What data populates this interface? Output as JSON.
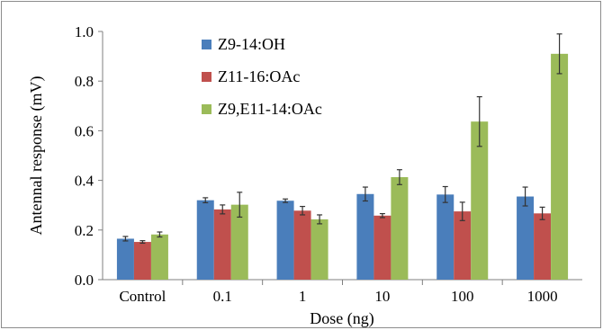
{
  "chart_data": {
    "type": "bar",
    "title": "",
    "xlabel": "Dose (ng)",
    "ylabel": "Antennal response (mV)",
    "ylim": [
      0,
      1.0
    ],
    "yticks": [
      "0.0",
      "0.2",
      "0.4",
      "0.6",
      "0.8",
      "1.0"
    ],
    "categories": [
      "Control",
      "0.1",
      "1",
      "10",
      "100",
      "1000"
    ],
    "legend_position": "top-left",
    "grid": false,
    "error_bars": true,
    "series": [
      {
        "name": "Z9-14:OH",
        "color": "#4a7ebb",
        "values": [
          0.165,
          0.32,
          0.318,
          0.345,
          0.343,
          0.335
        ],
        "errors": [
          0.009,
          0.01,
          0.007,
          0.028,
          0.032,
          0.038
        ]
      },
      {
        "name": "Z11-16:OAc",
        "color": "#c0504d",
        "values": [
          0.152,
          0.283,
          0.278,
          0.258,
          0.275,
          0.267
        ],
        "errors": [
          0.005,
          0.018,
          0.017,
          0.008,
          0.037,
          0.025
        ]
      },
      {
        "name": "Z9,E11-14:OAc",
        "color": "#9bbb59",
        "values": [
          0.182,
          0.302,
          0.243,
          0.413,
          0.637,
          0.91
        ],
        "errors": [
          0.01,
          0.05,
          0.018,
          0.03,
          0.1,
          0.08
        ]
      }
    ]
  }
}
